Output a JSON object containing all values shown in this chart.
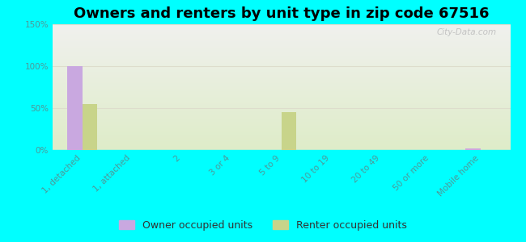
{
  "title": "Owners and renters by unit type in zip code 67516",
  "categories": [
    "1, detached",
    "1, attached",
    "2",
    "3 or 4",
    "5 to 9",
    "10 to 19",
    "20 to 49",
    "50 or more",
    "Mobile home"
  ],
  "owner_values": [
    100,
    0,
    0,
    0,
    0,
    0,
    0,
    0,
    2
  ],
  "renter_values": [
    55,
    0,
    0,
    0,
    45,
    0,
    0,
    0,
    0
  ],
  "owner_color": "#c9a8e0",
  "renter_color": "#c8d48a",
  "ylim": [
    0,
    150
  ],
  "yticks": [
    0,
    50,
    100,
    150
  ],
  "ytick_labels": [
    "0%",
    "50%",
    "100%",
    "150%"
  ],
  "bg_outer": "#00ffff",
  "bg_plot_top": "#f0f0ee",
  "bg_plot_bottom": "#deecc8",
  "watermark": "City-Data.com",
  "bar_width": 0.3,
  "title_fontsize": 13,
  "legend_fontsize": 9,
  "tick_fontsize": 7.5,
  "tick_color": "#4d9999",
  "grid_color": "#ddddcc"
}
